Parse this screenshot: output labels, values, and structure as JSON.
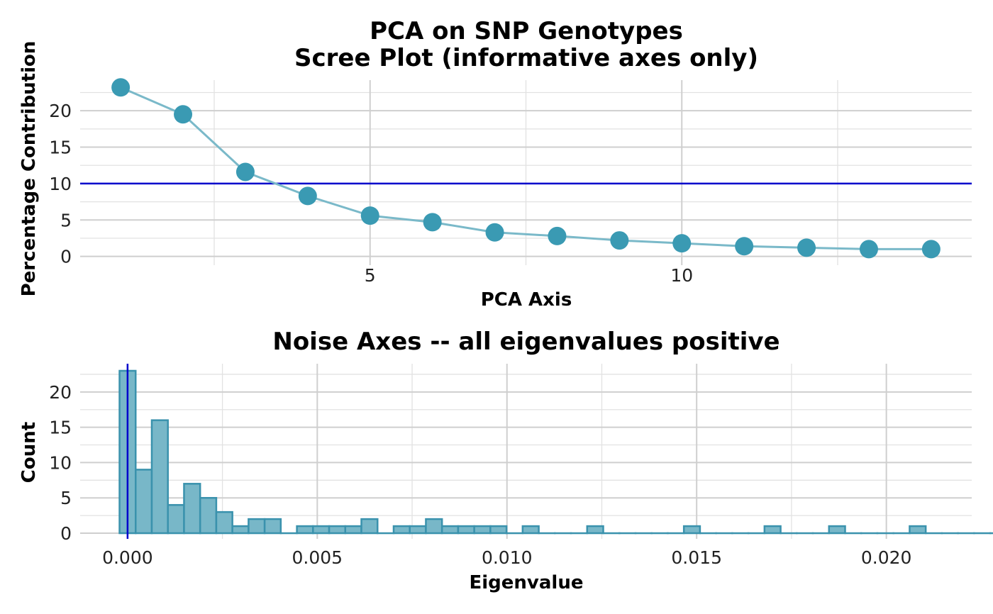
{
  "chart_data": [
    {
      "type": "line",
      "title": "PCA on SNP Genotypes",
      "subtitle": "Scree Plot (informative axes only)",
      "xlabel": "PCA Axis",
      "ylabel": "Percentage Contribution",
      "x_ticks": [
        "5",
        "10"
      ],
      "y_ticks": [
        "0",
        "5",
        "10",
        "15",
        "20"
      ],
      "xlim": [
        0.35,
        14.65
      ],
      "ylim": [
        -1.2,
        24.2
      ],
      "grid": true,
      "series": [
        {
          "x": [
            1,
            2,
            3,
            4,
            5,
            6,
            7,
            8,
            9,
            10,
            11,
            12,
            13,
            14
          ],
          "values": [
            23.2,
            19.5,
            11.6,
            8.3,
            5.6,
            4.7,
            3.3,
            2.8,
            2.2,
            1.8,
            1.4,
            1.2,
            1.0,
            1.0
          ]
        }
      ],
      "hline": 10,
      "colors": {
        "points": "#3a9ab3",
        "line": "#7ab9c9",
        "reference": "#0000cc"
      }
    },
    {
      "type": "bar",
      "title": "Noise Axes -- all eigenvalues positive",
      "xlabel": "Eigenvalue",
      "ylabel": "Count",
      "x_ticks": [
        "0.000",
        "0.005",
        "0.010",
        "0.015",
        "0.020"
      ],
      "y_ticks": [
        "0",
        "5",
        "10",
        "15",
        "20"
      ],
      "xlim": [
        -0.00125,
        0.02225
      ],
      "ylim": [
        -0.8,
        24.0
      ],
      "grid": true,
      "bin_width": 0.000425,
      "bin_start": -0.000212,
      "counts": [
        23,
        9,
        16,
        4,
        7,
        5,
        3,
        1,
        2,
        2,
        0,
        1,
        1,
        1,
        1,
        2,
        0,
        1,
        1,
        2,
        1,
        1,
        1,
        1,
        0,
        1,
        0,
        0,
        0,
        1,
        0,
        0,
        0,
        0,
        0,
        1,
        0,
        0,
        0,
        0,
        1,
        0,
        0,
        0,
        1,
        0,
        0,
        0,
        0,
        1,
        0,
        0,
        0,
        0,
        0,
        0,
        0,
        0,
        0,
        0,
        0,
        0,
        0,
        0,
        0,
        0,
        0,
        0,
        0,
        0,
        0
      ],
      "vline": 0,
      "colors": {
        "fill": "#78b7c8",
        "stroke": "#3a92ad",
        "reference": "#0000cc"
      }
    }
  ]
}
